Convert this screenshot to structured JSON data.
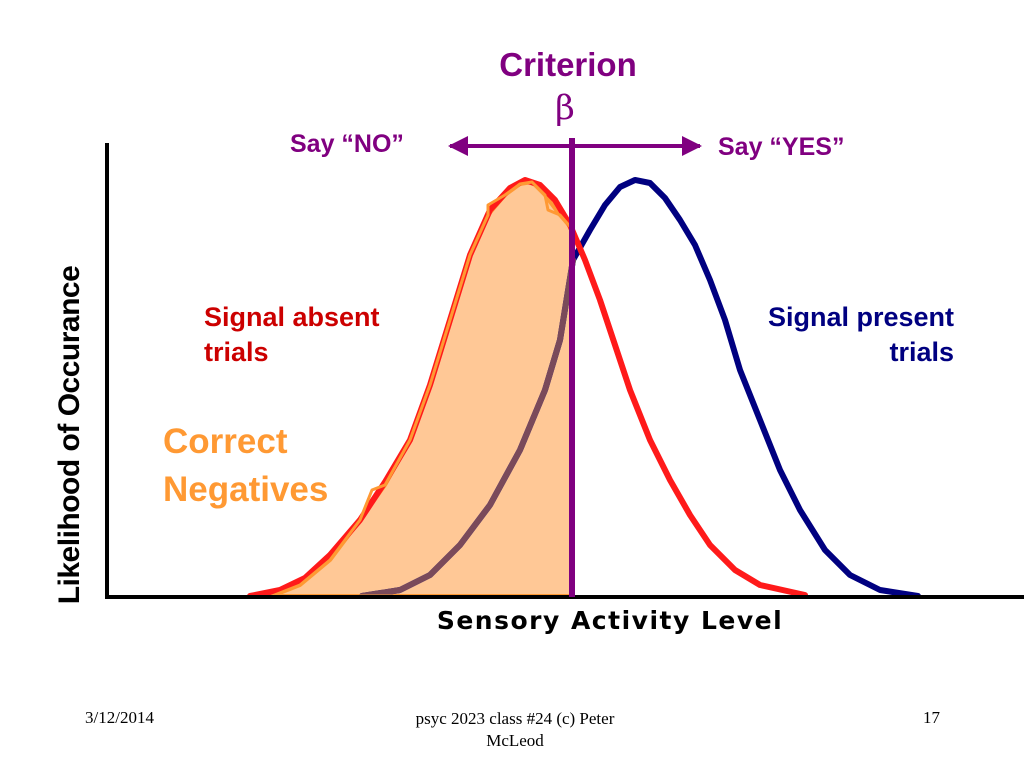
{
  "colors": {
    "signal_absent": "#ff1a1a",
    "signal_present": "#000080",
    "criterion": "#800080",
    "correct_negatives_fill": "#ffc896",
    "correct_negatives_outline": "#ff9933",
    "absent_label": "#cc0000",
    "correct_negatives_label": "#ff9933",
    "axis": "#000000"
  },
  "diagram": {
    "criterion_title": "Criterion",
    "criterion_symbol": "β",
    "say_no": "Say “NO”",
    "say_yes": "Say “YES”",
    "signal_absent_label_line1": "Signal absent",
    "signal_absent_label_line2": "trials",
    "signal_present_label_line1": "Signal present",
    "signal_present_label_line2": "trials",
    "region_label_line1": "Correct",
    "region_label_line2": "Negatives",
    "y_axis_label": "Likelihood of Occurance",
    "x_axis_label": "Sensory Activity Level"
  },
  "footer": {
    "date": "3/12/2014",
    "credit_line1": "psyc 2023 class #24 (c) Peter",
    "credit_line2": "McLeod",
    "page_number": "17"
  }
}
